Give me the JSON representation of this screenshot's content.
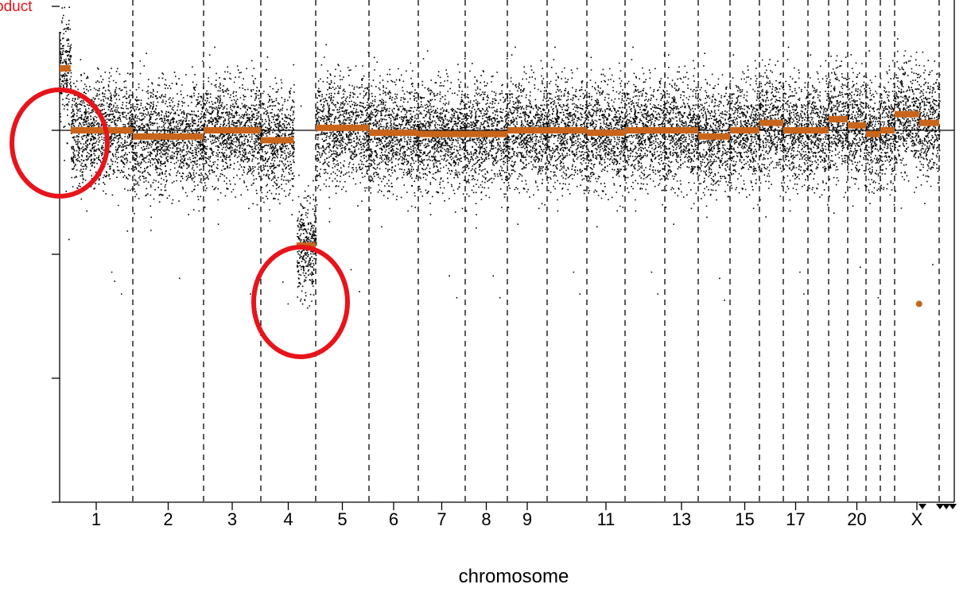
{
  "chart_data": {
    "type": "scatter",
    "title": "oduct",
    "xlabel": "chromosome",
    "ylabel": "",
    "x_tick_labels": [
      "1",
      "2",
      "3",
      "4",
      "5",
      "6",
      "7",
      "8",
      "9",
      "11",
      "13",
      "15",
      "17",
      "20",
      "X"
    ],
    "chromosome_order": [
      "1",
      "2",
      "3",
      "4",
      "5",
      "6",
      "7",
      "8",
      "9",
      "10",
      "11",
      "12",
      "13",
      "14",
      "15",
      "16",
      "17",
      "18",
      "19",
      "20",
      "21",
      "22",
      "X",
      "Y"
    ],
    "y_range": [
      -3,
      1
    ],
    "y_ticks": [
      1,
      0,
      -1,
      -2,
      -3
    ],
    "baseline": 0,
    "grid": "dashed vertical lines at chromosome boundaries",
    "legend": "none",
    "segments": [
      {
        "chromosome": "1",
        "start": 0.0,
        "end": 0.15,
        "value": 0.5
      },
      {
        "chromosome": "1",
        "start": 0.15,
        "end": 1.0,
        "value": 0.0
      },
      {
        "chromosome": "2",
        "start": 0.0,
        "end": 1.0,
        "value": -0.05
      },
      {
        "chromosome": "3",
        "start": 0.0,
        "end": 1.0,
        "value": 0.0
      },
      {
        "chromosome": "4",
        "start": 0.0,
        "end": 0.6,
        "value": -0.08
      },
      {
        "chromosome": "4",
        "start": 0.65,
        "end": 1.0,
        "value": -0.93
      },
      {
        "chromosome": "5",
        "start": 0.0,
        "end": 1.0,
        "value": 0.02
      },
      {
        "chromosome": "6",
        "start": 0.0,
        "end": 1.0,
        "value": -0.02
      },
      {
        "chromosome": "7",
        "start": 0.0,
        "end": 1.0,
        "value": -0.03
      },
      {
        "chromosome": "8",
        "start": 0.0,
        "end": 1.0,
        "value": -0.03
      },
      {
        "chromosome": "9",
        "start": 0.0,
        "end": 1.0,
        "value": 0.0
      },
      {
        "chromosome": "10",
        "start": 0.0,
        "end": 1.0,
        "value": 0.0
      },
      {
        "chromosome": "11",
        "start": 0.0,
        "end": 1.0,
        "value": -0.02
      },
      {
        "chromosome": "12",
        "start": 0.0,
        "end": 1.0,
        "value": 0.0
      },
      {
        "chromosome": "13",
        "start": 0.0,
        "end": 1.0,
        "value": 0.0
      },
      {
        "chromosome": "14",
        "start": 0.0,
        "end": 1.0,
        "value": -0.05
      },
      {
        "chromosome": "15",
        "start": 0.0,
        "end": 1.0,
        "value": 0.0
      },
      {
        "chromosome": "16",
        "start": 0.0,
        "end": 1.0,
        "value": 0.06
      },
      {
        "chromosome": "17",
        "start": 0.0,
        "end": 1.0,
        "value": 0.0
      },
      {
        "chromosome": "18",
        "start": 0.0,
        "end": 1.0,
        "value": 0.0
      },
      {
        "chromosome": "19",
        "start": 0.0,
        "end": 1.0,
        "value": 0.09
      },
      {
        "chromosome": "20",
        "start": 0.0,
        "end": 1.0,
        "value": 0.04
      },
      {
        "chromosome": "21",
        "start": 0.0,
        "end": 1.0,
        "value": -0.03
      },
      {
        "chromosome": "22",
        "start": 0.0,
        "end": 1.0,
        "value": 0.0
      },
      {
        "chromosome": "X",
        "start": 0.0,
        "end": 0.55,
        "value": 0.13
      },
      {
        "chromosome": "X",
        "start": 0.55,
        "end": 1.0,
        "value": 0.06
      }
    ],
    "outlier_point": {
      "chromosome": "X",
      "value": -1.4
    },
    "highlighted_regions": [
      {
        "chromosome": "1",
        "feature": "gain",
        "segment_value": 0.5
      },
      {
        "chromosome": "4",
        "feature": "loss",
        "segment_value": -0.93
      }
    ],
    "colors": {
      "points": "#000000",
      "segments": "#c8651b",
      "highlight": "#e8141b",
      "title": "#e8141b",
      "baseline": "#000000"
    }
  }
}
